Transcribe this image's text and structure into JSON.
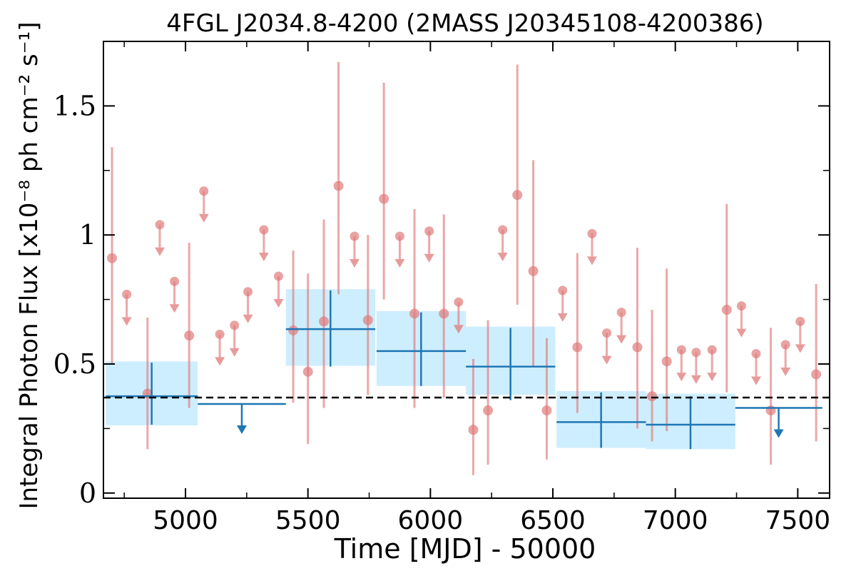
{
  "chart_data": {
    "type": "scatter",
    "title": "4FGL J2034.8-4200 (2MASS J20345108-4200386)",
    "xlabel": "Time [MJD] - 50000",
    "ylabel": "Integral Photon Flux [x10⁻⁸ ph cm⁻² s⁻¹]",
    "xlim": [
      4665,
      7630
    ],
    "ylim": [
      -0.02,
      1.75
    ],
    "x_ticks": [
      5000,
      5500,
      6000,
      6500,
      7000,
      7500
    ],
    "x_tick_labels": [
      "5000",
      "5500",
      "6000",
      "6500",
      "7000",
      "7500"
    ],
    "y_ticks": [
      0,
      0.5,
      1,
      1.5
    ],
    "y_tick_labels": [
      "0",
      "0.5",
      "1",
      "1.5"
    ],
    "grid": false,
    "reference_line": {
      "y": 0.37,
      "style": "dashed",
      "color": "#000000"
    },
    "colors": {
      "monthly": "#e07a7a",
      "yearly": "#1f77b4",
      "yearly_band": "#cdeefe"
    },
    "series": [
      {
        "kind": "points_with_error",
        "color": "#e07a7a",
        "points": [
          {
            "x": 4700,
            "y": 0.91,
            "ylo": 0.5,
            "yhi": 1.34
          },
          {
            "x": 4845,
            "y": 0.385,
            "ylo": 0.17,
            "yhi": 0.68
          },
          {
            "x": 5015,
            "y": 0.61,
            "ylo": 0.33,
            "yhi": 0.97
          },
          {
            "x": 5440,
            "y": 0.63,
            "ylo": 0.35,
            "yhi": 0.94
          },
          {
            "x": 5500,
            "y": 0.47,
            "ylo": 0.19,
            "yhi": 0.85
          },
          {
            "x": 5565,
            "y": 0.665,
            "ylo": 0.33,
            "yhi": 1.06
          },
          {
            "x": 5625,
            "y": 1.19,
            "ylo": 0.77,
            "yhi": 1.67
          },
          {
            "x": 5745,
            "y": 0.67,
            "ylo": 0.38,
            "yhi": 1.0
          },
          {
            "x": 5810,
            "y": 1.14,
            "ylo": 0.75,
            "yhi": 1.59
          },
          {
            "x": 5935,
            "y": 0.695,
            "ylo": 0.33,
            "yhi": 1.1
          },
          {
            "x": 6055,
            "y": 0.695,
            "ylo": 0.37,
            "yhi": 1.08
          },
          {
            "x": 6175,
            "y": 0.245,
            "ylo": 0.07,
            "yhi": 0.52
          },
          {
            "x": 6235,
            "y": 0.32,
            "ylo": 0.11,
            "yhi": 0.67
          },
          {
            "x": 6355,
            "y": 1.155,
            "ylo": 0.73,
            "yhi": 1.66
          },
          {
            "x": 6420,
            "y": 0.86,
            "ylo": 0.49,
            "yhi": 1.29
          },
          {
            "x": 6475,
            "y": 0.32,
            "ylo": 0.13,
            "yhi": 0.6
          },
          {
            "x": 6600,
            "y": 0.565,
            "ylo": 0.31,
            "yhi": 0.93
          },
          {
            "x": 6845,
            "y": 0.565,
            "ylo": 0.25,
            "yhi": 0.95
          },
          {
            "x": 6905,
            "y": 0.375,
            "ylo": 0.2,
            "yhi": 0.71
          },
          {
            "x": 6965,
            "y": 0.51,
            "ylo": 0.24,
            "yhi": 0.87
          },
          {
            "x": 7210,
            "y": 0.71,
            "ylo": 0.39,
            "yhi": 1.12
          },
          {
            "x": 7390,
            "y": 0.32,
            "ylo": 0.11,
            "yhi": 0.64
          },
          {
            "x": 7575,
            "y": 0.46,
            "ylo": 0.2,
            "yhi": 0.81
          }
        ]
      },
      {
        "kind": "upper_limits",
        "color": "#e07a7a",
        "values": [
          {
            "x": 4760,
            "y": 0.77
          },
          {
            "x": 4895,
            "y": 1.04
          },
          {
            "x": 4955,
            "y": 0.82
          },
          {
            "x": 5075,
            "y": 1.17
          },
          {
            "x": 5140,
            "y": 0.615
          },
          {
            "x": 5200,
            "y": 0.65
          },
          {
            "x": 5255,
            "y": 0.78
          },
          {
            "x": 5320,
            "y": 1.02
          },
          {
            "x": 5380,
            "y": 0.84
          },
          {
            "x": 5690,
            "y": 0.995
          },
          {
            "x": 5875,
            "y": 0.995
          },
          {
            "x": 5995,
            "y": 1.015
          },
          {
            "x": 6115,
            "y": 0.74
          },
          {
            "x": 6295,
            "y": 1.02
          },
          {
            "x": 6540,
            "y": 0.785
          },
          {
            "x": 6660,
            "y": 1.005
          },
          {
            "x": 6720,
            "y": 0.62
          },
          {
            "x": 6780,
            "y": 0.7
          },
          {
            "x": 7025,
            "y": 0.555
          },
          {
            "x": 7085,
            "y": 0.545
          },
          {
            "x": 7150,
            "y": 0.555
          },
          {
            "x": 7270,
            "y": 0.725
          },
          {
            "x": 7330,
            "y": 0.54
          },
          {
            "x": 7450,
            "y": 0.575
          },
          {
            "x": 7510,
            "y": 0.665
          }
        ]
      },
      {
        "kind": "binned_with_band",
        "color": "#1f77b4",
        "bins": [
          {
            "x0": 4675,
            "x1": 5050,
            "xc": 4862,
            "y": 0.375,
            "ylo": 0.265,
            "yhi": 0.505,
            "blo": 0.262,
            "bhi": 0.51
          },
          {
            "x0": 5410,
            "x1": 5775,
            "xc": 5592,
            "y": 0.635,
            "ylo": 0.49,
            "yhi": 0.785,
            "blo": 0.493,
            "bhi": 0.79
          },
          {
            "x0": 5780,
            "x1": 6145,
            "xc": 5962,
            "y": 0.55,
            "ylo": 0.415,
            "yhi": 0.7,
            "blo": 0.415,
            "bhi": 0.705
          },
          {
            "x0": 6145,
            "x1": 6510,
            "xc": 6327,
            "y": 0.49,
            "ylo": 0.36,
            "yhi": 0.64,
            "blo": 0.38,
            "bhi": 0.645
          },
          {
            "x0": 6515,
            "x1": 6880,
            "xc": 6697,
            "y": 0.275,
            "ylo": 0.175,
            "yhi": 0.39,
            "blo": 0.175,
            "bhi": 0.395
          },
          {
            "x0": 6880,
            "x1": 7245,
            "xc": 7062,
            "y": 0.265,
            "ylo": 0.17,
            "yhi": 0.375,
            "blo": 0.17,
            "bhi": 0.385
          }
        ]
      },
      {
        "kind": "binned_upper_limits",
        "color": "#1f77b4",
        "bins": [
          {
            "x0": 5050,
            "x1": 5410,
            "xc": 5230,
            "y": 0.345
          },
          {
            "x0": 7245,
            "x1": 7600,
            "xc": 7422,
            "y": 0.33
          }
        ]
      }
    ]
  }
}
